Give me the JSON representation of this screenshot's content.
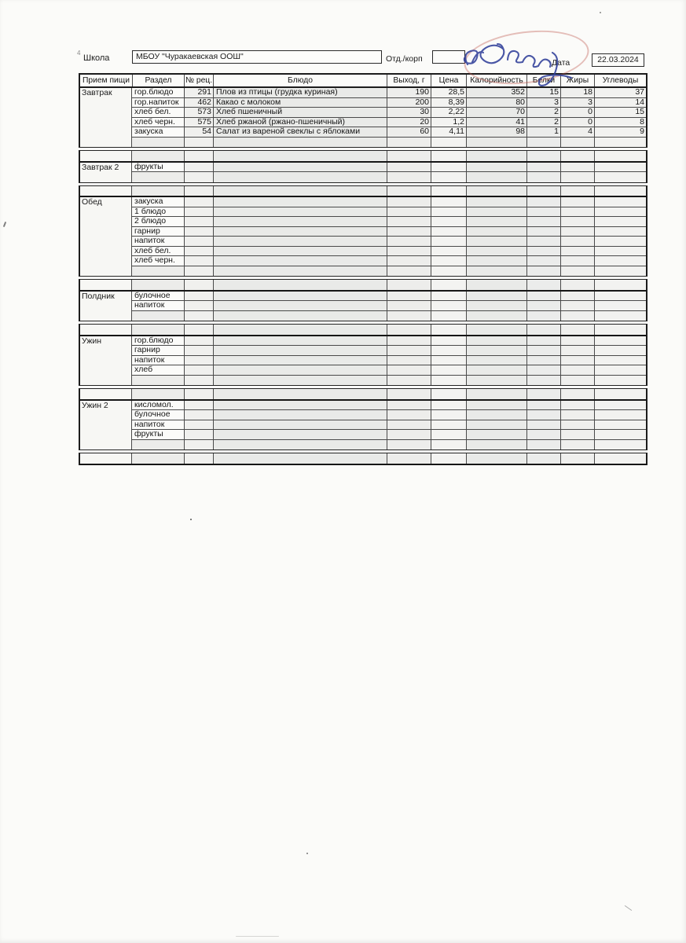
{
  "page": {
    "corner_mark": "4",
    "school_label": "Школа",
    "school_name": "МБОУ \"Чуракаевская ООШ\"",
    "dept_label": "Отд./корп",
    "dept_value": "",
    "date_label": "Дата",
    "date_value": "22.03.2024"
  },
  "colors": {
    "stamp": "#c05a50",
    "signature": "#31409a"
  },
  "table": {
    "headers": [
      "Прием пищи",
      "Раздел",
      "№ рец.",
      "Блюдо",
      "Выход, г",
      "Цена",
      "Калорийность",
      "Белки",
      "Жиры",
      "Углеводы"
    ],
    "sections": [
      {
        "meal": "Завтрак",
        "rows": [
          {
            "razdel": "гор.блюдо",
            "num": "291",
            "dish": "Плов из птицы (грудка куриная)",
            "out": "190",
            "price": "28,5",
            "kcal": "352",
            "prot": "15",
            "fat": "18",
            "carb": "37"
          },
          {
            "razdel": "гор.напиток",
            "num": "462",
            "dish": "Какао с молоком",
            "out": "200",
            "price": "8,39",
            "kcal": "80",
            "prot": "3",
            "fat": "3",
            "carb": "14"
          },
          {
            "razdel": "хлеб бел.",
            "num": "573",
            "dish": "Хлеб пшеничный",
            "out": "30",
            "price": "2,22",
            "kcal": "70",
            "prot": "2",
            "fat": "0",
            "carb": "15"
          },
          {
            "razdel": "хлеб черн.",
            "num": "575",
            "dish": "Хлеб ржаной (ржано-пшеничный)",
            "out": "20",
            "price": "1,2",
            "kcal": "41",
            "prot": "2",
            "fat": "0",
            "carb": "8"
          },
          {
            "razdel": "закуска",
            "num": "54",
            "dish": "Салат из вареной свеклы с яблоками",
            "out": "60",
            "price": "4,11",
            "kcal": "98",
            "prot": "1",
            "fat": "4",
            "carb": "9"
          }
        ],
        "empty_rows": 1,
        "tail_row": true
      },
      {
        "meal": "Завтрак 2",
        "rows": [
          {
            "razdel": "фрукты"
          }
        ],
        "empty_rows": 1,
        "tail_row": true
      },
      {
        "meal": "Обед",
        "rows": [
          {
            "razdel": "закуска"
          },
          {
            "razdel": "1 блюдо"
          },
          {
            "razdel": "2 блюдо"
          },
          {
            "razdel": "гарнир"
          },
          {
            "razdel": "напиток"
          },
          {
            "razdel": "хлеб бел."
          },
          {
            "razdel": "хлеб черн."
          }
        ],
        "empty_rows": 1,
        "tail_row": true
      },
      {
        "meal": "Полдник",
        "rows": [
          {
            "razdel": "булочное"
          },
          {
            "razdel": "напиток"
          }
        ],
        "empty_rows": 1,
        "tail_row": true
      },
      {
        "meal": "Ужин",
        "rows": [
          {
            "razdel": "гор.блюдо"
          },
          {
            "razdel": "гарнир"
          },
          {
            "razdel": "напиток"
          },
          {
            "razdel": "хлеб"
          }
        ],
        "empty_rows": 1,
        "tail_row": true
      },
      {
        "meal": "Ужин 2",
        "rows": [
          {
            "razdel": "кисломол."
          },
          {
            "razdel": "булочное"
          },
          {
            "razdel": "напиток"
          },
          {
            "razdel": "фрукты"
          }
        ],
        "empty_rows": 1,
        "tail_row": true
      }
    ]
  }
}
